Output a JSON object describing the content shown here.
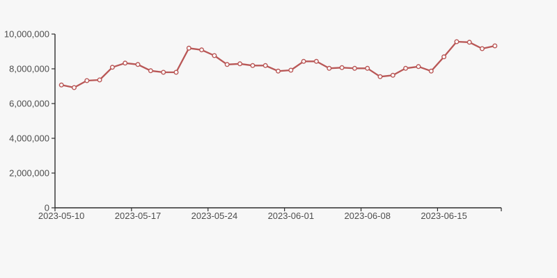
{
  "background_color": "#f7f7f7",
  "axis": {
    "line_color": "#2f2f2f",
    "label_color": "#4d4d4d"
  },
  "chart_data": {
    "type": "line",
    "title": "",
    "xlabel": "",
    "ylabel": "",
    "grid": false,
    "legend_position": "none",
    "ylim": [
      0,
      10000000
    ],
    "y_ticks": [
      0,
      2000000,
      4000000,
      6000000,
      8000000,
      10000000
    ],
    "y_tick_labels": [
      "0",
      "2,000,000",
      "4,000,000",
      "6,000,000",
      "8,000,000",
      "10,000,000"
    ],
    "x_tick_labels": [
      "2023-05-10",
      "2023-05-17",
      "2023-05-24",
      "2023-06-01",
      "2023-06-08",
      "2023-06-15"
    ],
    "x_tick_indices": [
      0,
      6,
      12,
      18,
      24,
      30
    ],
    "num_points": 35,
    "series": [
      {
        "name": "daily-value-series",
        "color": "#b95756",
        "marker": "open-circle",
        "marker_fill": "#ffffff",
        "values": [
          7070000,
          6920000,
          7320000,
          7360000,
          8090000,
          8330000,
          8250000,
          7890000,
          7800000,
          7800000,
          9190000,
          9090000,
          8760000,
          8250000,
          8290000,
          8190000,
          8190000,
          7870000,
          7920000,
          8430000,
          8430000,
          8030000,
          8070000,
          8030000,
          8030000,
          7550000,
          7630000,
          8030000,
          8130000,
          7870000,
          8690000,
          9560000,
          9530000,
          9160000,
          9320000
        ]
      }
    ]
  }
}
